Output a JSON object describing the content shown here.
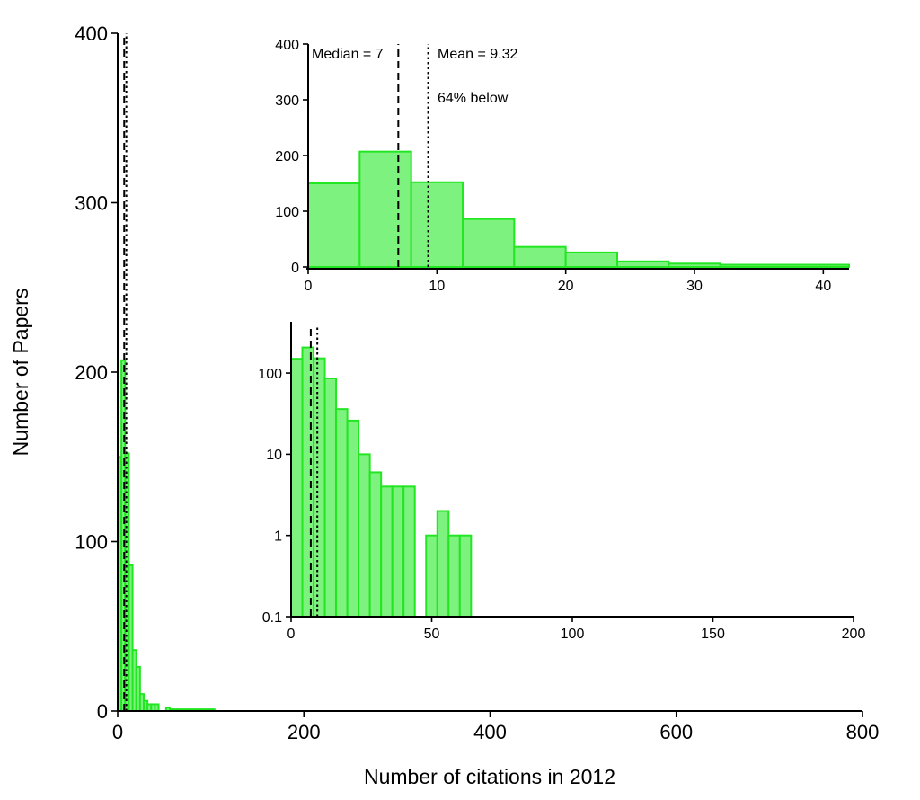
{
  "chart_data": [
    {
      "type": "bar",
      "panel": "main",
      "xlabel": "Number of citations in 2012",
      "ylabel": "Number of Papers",
      "xlim": [
        0,
        800
      ],
      "ylim": [
        0,
        400
      ],
      "xticks": [
        0,
        200,
        400,
        600,
        800
      ],
      "yticks": [
        0,
        100,
        200,
        300,
        400
      ],
      "bin_width": 4,
      "bins": [
        {
          "x0": 0,
          "x1": 4,
          "value": 150
        },
        {
          "x0": 4,
          "x1": 8,
          "value": 207
        },
        {
          "x0": 8,
          "x1": 12,
          "value": 152
        },
        {
          "x0": 12,
          "x1": 16,
          "value": 86
        },
        {
          "x0": 16,
          "x1": 20,
          "value": 36
        },
        {
          "x0": 20,
          "x1": 24,
          "value": 26
        },
        {
          "x0": 24,
          "x1": 28,
          "value": 10
        },
        {
          "x0": 28,
          "x1": 32,
          "value": 6
        },
        {
          "x0": 32,
          "x1": 36,
          "value": 4
        },
        {
          "x0": 36,
          "x1": 40,
          "value": 4
        },
        {
          "x0": 40,
          "x1": 44,
          "value": 4
        },
        {
          "x0": 52,
          "x1": 56,
          "value": 2
        },
        {
          "x0": 56,
          "x1": 60,
          "value": 1
        },
        {
          "x0": 60,
          "x1": 64,
          "value": 1
        },
        {
          "x0": 64,
          "x1": 104,
          "value": 1
        }
      ],
      "median": 7,
      "mean": 9.32
    },
    {
      "type": "bar",
      "panel": "inset-linear",
      "xlim": [
        0,
        42
      ],
      "ylim": [
        0,
        400
      ],
      "xticks": [
        0,
        10,
        20,
        30,
        40
      ],
      "yticks": [
        0,
        100,
        200,
        300,
        400
      ],
      "bins": [
        {
          "x0": 0,
          "x1": 4,
          "value": 150
        },
        {
          "x0": 4,
          "x1": 8,
          "value": 207
        },
        {
          "x0": 8,
          "x1": 12,
          "value": 152
        },
        {
          "x0": 12,
          "x1": 16,
          "value": 86
        },
        {
          "x0": 16,
          "x1": 20,
          "value": 36
        },
        {
          "x0": 20,
          "x1": 24,
          "value": 26
        },
        {
          "x0": 24,
          "x1": 28,
          "value": 10
        },
        {
          "x0": 28,
          "x1": 32,
          "value": 6
        },
        {
          "x0": 32,
          "x1": 42,
          "value": 4
        }
      ],
      "median": 7,
      "mean": 9.32,
      "annotations": {
        "median": "Median = 7",
        "mean": "Mean = 9.32",
        "below": "64% below"
      }
    },
    {
      "type": "bar",
      "panel": "inset-log",
      "yscale": "log",
      "xlim": [
        0,
        200
      ],
      "ylim": [
        0.1,
        300
      ],
      "xticks": [
        0,
        50,
        100,
        150,
        200
      ],
      "yticks": [
        0.1,
        1,
        10,
        100
      ],
      "ytick_labels": [
        "0.1",
        "1",
        "10",
        "100"
      ],
      "bin_width": 4,
      "bins": [
        {
          "x0": 0,
          "x1": 4,
          "value": 150
        },
        {
          "x0": 4,
          "x1": 8,
          "value": 207
        },
        {
          "x0": 8,
          "x1": 12,
          "value": 152
        },
        {
          "x0": 12,
          "x1": 16,
          "value": 86
        },
        {
          "x0": 16,
          "x1": 20,
          "value": 36
        },
        {
          "x0": 20,
          "x1": 24,
          "value": 26
        },
        {
          "x0": 24,
          "x1": 28,
          "value": 10
        },
        {
          "x0": 28,
          "x1": 32,
          "value": 6
        },
        {
          "x0": 32,
          "x1": 36,
          "value": 4
        },
        {
          "x0": 36,
          "x1": 40,
          "value": 4
        },
        {
          "x0": 40,
          "x1": 44,
          "value": 4
        },
        {
          "x0": 48,
          "x1": 52,
          "value": 1
        },
        {
          "x0": 52,
          "x1": 56,
          "value": 2
        },
        {
          "x0": 56,
          "x1": 60,
          "value": 1
        },
        {
          "x0": 60,
          "x1": 64,
          "value": 1
        }
      ],
      "median": 7,
      "mean": 9.32
    }
  ],
  "colors": {
    "bar_fill": "#7ef27e",
    "bar_edge": "#22e622",
    "axis": "#000000"
  }
}
